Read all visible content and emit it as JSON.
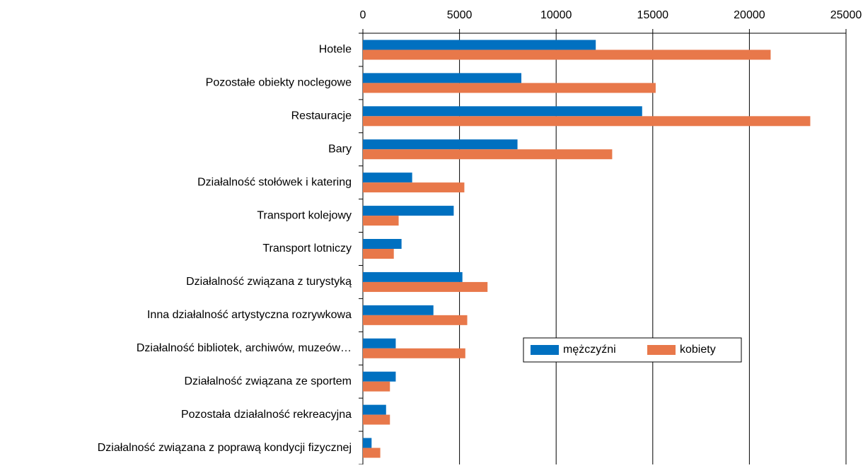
{
  "chart_data": {
    "type": "hbar",
    "categories": [
      "Hotele",
      "Pozostałe obiekty noclegowe",
      "Restauracje",
      "Bary",
      "Działalność stołówek i katering",
      "Transport kolejowy",
      "Transport lotniczy",
      "Działalność związana z turystyką",
      "Inna działalność artystyczna  rozrywkowa",
      "Działalność bibliotek, archiwów, muzeów…",
      "Działalność związana ze sportem",
      "Pozostała działalność rekreacyjna",
      "Działalność związana z poprawą  kondycji fizycznej"
    ],
    "series": [
      {
        "name": "mężczyźni",
        "color": "#0070c0",
        "values": [
          12050,
          8200,
          14450,
          8000,
          2550,
          4700,
          2000,
          5150,
          3650,
          1700,
          1700,
          1200,
          450
        ]
      },
      {
        "name": "kobiety",
        "color": "#e8784a",
        "values": [
          21100,
          15150,
          23150,
          12900,
          5250,
          1850,
          1600,
          6450,
          5400,
          5300,
          1400,
          1400,
          900
        ]
      }
    ],
    "xlim": [
      0,
      25000
    ],
    "xticks": [
      0,
      5000,
      10000,
      15000,
      20000,
      25000
    ],
    "grid": true,
    "legend": "center-right"
  }
}
